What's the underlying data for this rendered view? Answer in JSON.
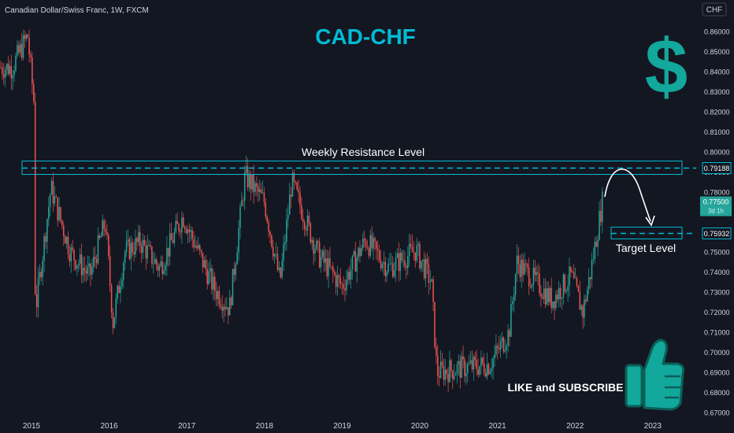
{
  "header": {
    "symbol_text": "Canadian Dollar/Swiss Franc, 1W, FXCM",
    "currency_badge": "CHF"
  },
  "annotations": {
    "title": "CAD-CHF",
    "resistance_label": "Weekly Resistance Level",
    "target_label": "Target Level",
    "cta": "LIKE and SUBSCRIBE",
    "resistance_price": "0.79188",
    "target_price": "0.75932",
    "current_price": "0.77500",
    "countdown": "3d 1h"
  },
  "colors": {
    "background": "#131722",
    "up": "#26a69a",
    "down": "#ef5350",
    "accent": "#00bcd4",
    "text": "#d1d4dc",
    "current_price_bg": "#26a69a"
  },
  "icons": [
    "dollar-icon",
    "thumbs-up-icon"
  ],
  "chart_data": {
    "type": "candlestick",
    "xlabel": "",
    "ylabel": "",
    "x_ticks": [
      "2015",
      "2016",
      "2017",
      "2018",
      "2019",
      "2020",
      "2021",
      "2022",
      "2023"
    ],
    "y_ticks": [
      "0.86000",
      "0.85000",
      "0.84000",
      "0.83000",
      "0.82000",
      "0.81000",
      "0.80000",
      "0.79000",
      "0.78000",
      "0.77000",
      "0.76000",
      "0.75000",
      "0.74000",
      "0.73000",
      "0.72000",
      "0.71000",
      "0.70000",
      "0.69000",
      "0.68000",
      "0.67000"
    ],
    "ylim": [
      0.67,
      0.866
    ],
    "xlim": [
      2014.7,
      2023.35
    ],
    "grid": false,
    "resistance_level": 0.79188,
    "target_level": 0.75932,
    "current_price": 0.775,
    "approx_close_path": [
      {
        "x": 2014.75,
        "y": 0.842
      },
      {
        "x": 2014.95,
        "y": 0.858
      },
      {
        "x": 2015.03,
        "y": 0.825
      },
      {
        "x": 2015.05,
        "y": 0.72
      },
      {
        "x": 2015.25,
        "y": 0.782
      },
      {
        "x": 2015.5,
        "y": 0.75
      },
      {
        "x": 2015.75,
        "y": 0.738
      },
      {
        "x": 2015.95,
        "y": 0.765
      },
      {
        "x": 2016.05,
        "y": 0.715
      },
      {
        "x": 2016.2,
        "y": 0.75
      },
      {
        "x": 2016.4,
        "y": 0.755
      },
      {
        "x": 2016.65,
        "y": 0.742
      },
      {
        "x": 2016.95,
        "y": 0.768
      },
      {
        "x": 2017.35,
        "y": 0.732
      },
      {
        "x": 2017.55,
        "y": 0.722
      },
      {
        "x": 2017.75,
        "y": 0.788
      },
      {
        "x": 2018.0,
        "y": 0.775
      },
      {
        "x": 2018.2,
        "y": 0.735
      },
      {
        "x": 2018.35,
        "y": 0.785
      },
      {
        "x": 2018.7,
        "y": 0.748
      },
      {
        "x": 2019.0,
        "y": 0.733
      },
      {
        "x": 2019.3,
        "y": 0.756
      },
      {
        "x": 2019.6,
        "y": 0.742
      },
      {
        "x": 2019.95,
        "y": 0.751
      },
      {
        "x": 2020.15,
        "y": 0.735
      },
      {
        "x": 2020.22,
        "y": 0.69
      },
      {
        "x": 2020.5,
        "y": 0.692
      },
      {
        "x": 2020.9,
        "y": 0.694
      },
      {
        "x": 2021.15,
        "y": 0.71
      },
      {
        "x": 2021.25,
        "y": 0.745
      },
      {
        "x": 2021.5,
        "y": 0.735
      },
      {
        "x": 2021.7,
        "y": 0.726
      },
      {
        "x": 2021.95,
        "y": 0.738
      },
      {
        "x": 2022.1,
        "y": 0.72
      },
      {
        "x": 2022.2,
        "y": 0.74
      },
      {
        "x": 2022.35,
        "y": 0.775
      }
    ]
  }
}
